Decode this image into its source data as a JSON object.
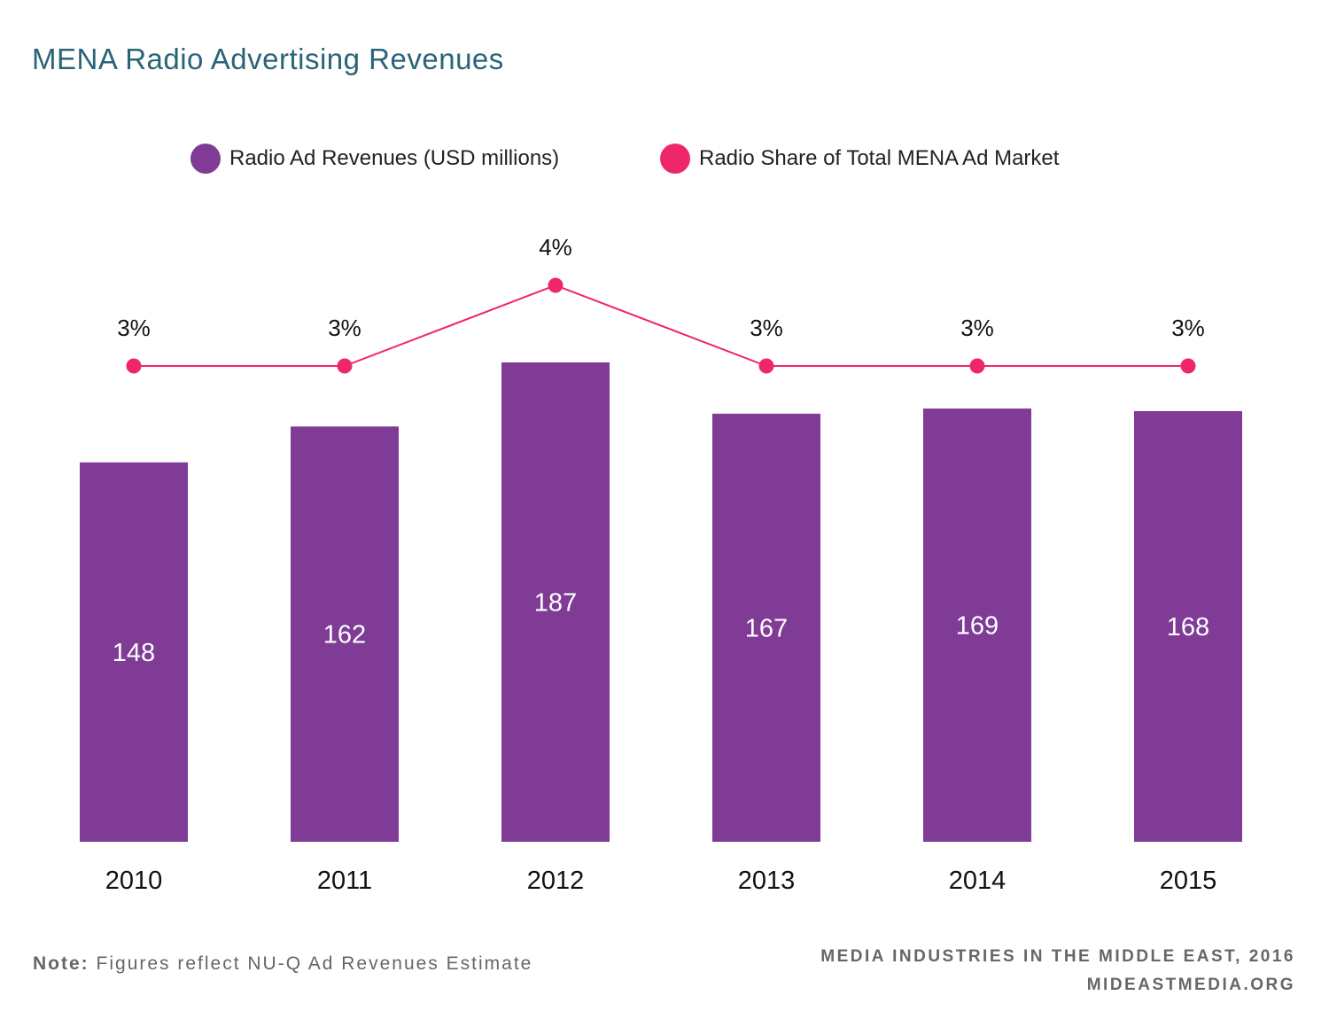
{
  "title": "MENA Radio Advertising Revenues",
  "legend": [
    {
      "label": "Radio Ad Revenues (USD millions)",
      "color": "#7f3b96"
    },
    {
      "label": "Radio Share of Total MENA Ad Market",
      "color": "#f0266b"
    }
  ],
  "chart_data": {
    "type": "bar",
    "categories": [
      "2010",
      "2011",
      "2012",
      "2013",
      "2014",
      "2015"
    ],
    "series": [
      {
        "name": "Radio Ad Revenues (USD millions)",
        "type": "bar",
        "values": [
          148,
          162,
          187,
          167,
          169,
          168
        ],
        "color": "#7f3b96"
      },
      {
        "name": "Radio Share of Total MENA Ad Market",
        "type": "line",
        "values": [
          3,
          3,
          4,
          3,
          3,
          3
        ],
        "labels": [
          "3%",
          "3%",
          "4%",
          "3%",
          "3%",
          "3%"
        ],
        "color": "#f0266b"
      }
    ],
    "legend_position": "top",
    "grid": false
  },
  "footer": {
    "note_label": "Note:",
    "note_text": "Figures reflect NU-Q Ad Revenues Estimate",
    "source_line1": "MEDIA INDUSTRIES IN THE MIDDLE EAST, 2016",
    "source_line2": "MIDEASTMEDIA.ORG"
  }
}
